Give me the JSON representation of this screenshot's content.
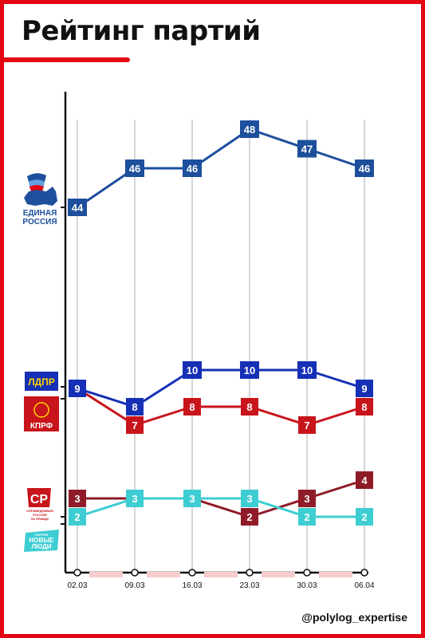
{
  "title": "Рейтинг партий",
  "watermark": "@polylog_expertise",
  "logos": {
    "er": {
      "line1": "ЕДИНАЯ",
      "line2": "РОССИЯ"
    },
    "ldpr": {
      "text": "ЛДПР"
    },
    "kprf": {
      "text": "КПРФ"
    },
    "sr": {
      "text": "СР",
      "caption1": "СПРАВЕДЛИВАЯ",
      "caption2": "РОССИЯ",
      "caption3": "ЗА ПРАВДУ"
    },
    "nl": {
      "top": "ПАРТИЯ",
      "line1": "НОВЫЕ",
      "line2": "ЛЮДИ"
    }
  },
  "chart_data": {
    "type": "line",
    "x": [
      "02.03",
      "09.03",
      "16.03",
      "23.03",
      "30.03",
      "06.04"
    ],
    "series": [
      {
        "key": "er",
        "values": [
          44,
          46,
          46,
          48,
          47,
          46
        ],
        "color": "#1d4f9c"
      },
      {
        "key": "ldpr",
        "values": [
          9,
          8,
          10,
          10,
          10,
          9
        ],
        "color": "#1530b5"
      },
      {
        "key": "kprf",
        "values": [
          9,
          7,
          8,
          8,
          7,
          8
        ],
        "color": "#c8141b"
      },
      {
        "key": "sr",
        "values": [
          3,
          3,
          3,
          2,
          3,
          4
        ],
        "color": "#8e1b27"
      },
      {
        "key": "nl",
        "values": [
          2,
          3,
          3,
          3,
          2,
          2
        ],
        "color": "#3ecdd2"
      }
    ],
    "labels": [
      {
        "series": 0,
        "point": 0,
        "text": "44"
      },
      {
        "series": 0,
        "point": 1,
        "text": "46"
      },
      {
        "series": 0,
        "point": 2,
        "text": "46"
      },
      {
        "series": 0,
        "point": 3,
        "text": "48"
      },
      {
        "series": 0,
        "point": 4,
        "text": "47"
      },
      {
        "series": 0,
        "point": 5,
        "text": "46"
      },
      {
        "series": 1,
        "point": 0,
        "text": "9"
      },
      {
        "series": 1,
        "point": 1,
        "text": "8"
      },
      {
        "series": 1,
        "point": 2,
        "text": "10"
      },
      {
        "series": 1,
        "point": 3,
        "text": "10"
      },
      {
        "series": 1,
        "point": 4,
        "text": "10"
      },
      {
        "series": 1,
        "point": 5,
        "text": "9"
      },
      {
        "series": 2,
        "point": 1,
        "text": "7"
      },
      {
        "series": 2,
        "point": 2,
        "text": "8"
      },
      {
        "series": 2,
        "point": 3,
        "text": "8"
      },
      {
        "series": 2,
        "point": 4,
        "text": "7"
      },
      {
        "series": 2,
        "point": 5,
        "text": "8"
      },
      {
        "series": 3,
        "point": 0,
        "text": "3"
      },
      {
        "series": 3,
        "point": 1,
        "text": "3"
      },
      {
        "series": 3,
        "point": 2,
        "text": "3"
      },
      {
        "series": 3,
        "point": 3,
        "text": "2"
      },
      {
        "series": 3,
        "point": 4,
        "text": "3"
      },
      {
        "series": 3,
        "point": 5,
        "text": "4"
      },
      {
        "series": 4,
        "point": 0,
        "text": "2"
      },
      {
        "series": 4,
        "point": 1,
        "text": "3"
      },
      {
        "series": 4,
        "point": 2,
        "text": "3"
      },
      {
        "series": 4,
        "point": 3,
        "text": "3"
      },
      {
        "series": 4,
        "point": 4,
        "text": "2"
      },
      {
        "series": 4,
        "point": 5,
        "text": "2"
      }
    ],
    "axis_color": "#111111",
    "gridline_color": "#c8c8c8",
    "band_color": "#f7cccc",
    "label_text_color": "#ffffff",
    "grid": "vertical"
  }
}
